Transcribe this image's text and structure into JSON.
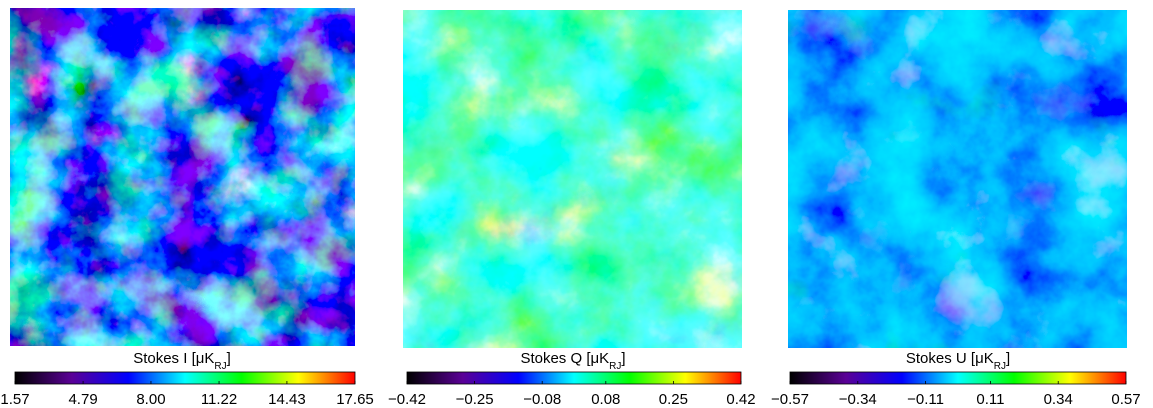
{
  "chart_data": [
    {
      "type": "heatmap",
      "title": [
        "Stokes I [μK",
        "RJ",
        "]"
      ],
      "colors": [
        "#000000",
        "#5a0096",
        "#0000ff",
        "#00ffff",
        "#00ff00",
        "#ffff00",
        "#ff0000"
      ],
      "xlim": [
        1.57,
        17.65
      ],
      "xticks": [
        1.57,
        4.79,
        {
          "value": 8,
          "label": "8.00"
        },
        11.22,
        14.43,
        17.65
      ]
    },
    {
      "type": "heatmap",
      "title": [
        "Stokes Q [μK",
        "RJ",
        "]"
      ],
      "colors": [
        "#000000",
        "#5a0096",
        "#0000ff",
        "#00ffff",
        "#00ff00",
        "#ffff00",
        "#ff0000"
      ],
      "xlim": [
        -0.42,
        0.42
      ],
      "xticks": [
        {
          "value": -0.42,
          "label": "−0.42"
        },
        {
          "value": -0.25,
          "label": "−0.25"
        },
        {
          "value": -0.08,
          "label": "−0.08"
        },
        0.08,
        0.25,
        0.42
      ]
    },
    {
      "type": "heatmap",
      "title": [
        "Stokes U [μK",
        "RJ",
        "]"
      ],
      "colors": [
        "#000000",
        "#5a0096",
        "#0000ff",
        "#00ffff",
        "#00ff00",
        "#ffff00",
        "#ff0000"
      ],
      "xlim": [
        -0.57,
        0.57
      ],
      "xticks": [
        {
          "value": -0.57,
          "label": "−0.57"
        },
        {
          "value": -0.34,
          "label": "−0.34"
        },
        {
          "value": -0.11,
          "label": "−0.11"
        },
        0.11,
        0.34,
        0.57
      ]
    }
  ]
}
